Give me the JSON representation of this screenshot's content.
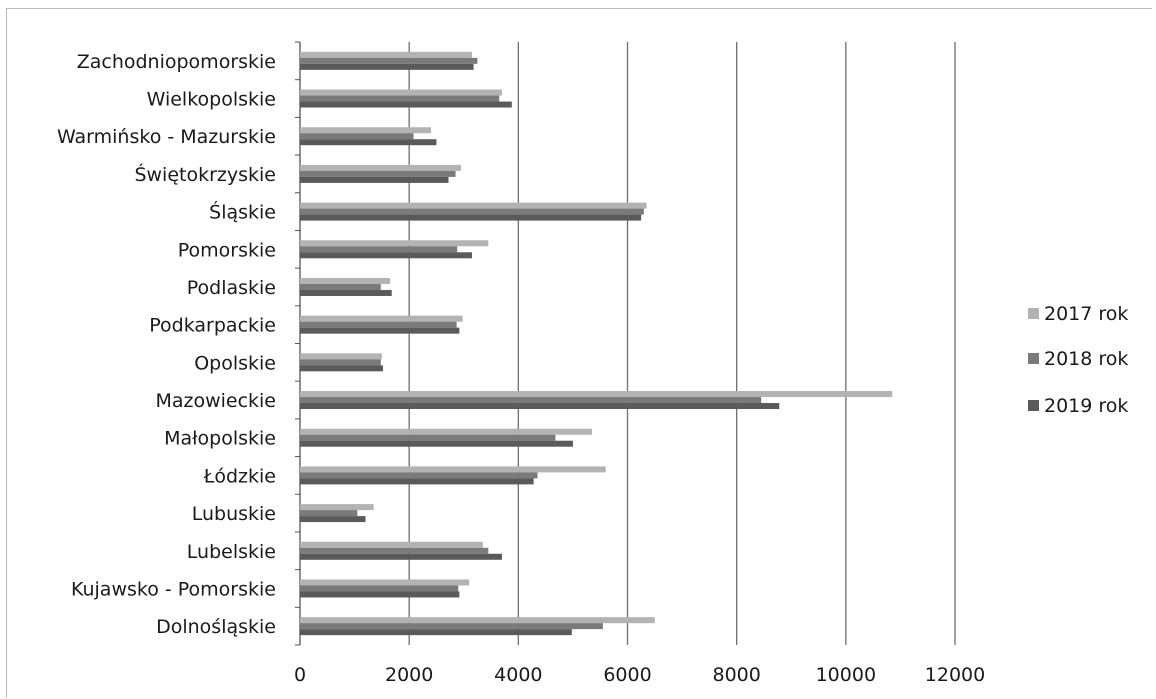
{
  "chart_data": {
    "type": "bar",
    "orientation": "horizontal",
    "title": "",
    "xlabel": "",
    "ylabel": "",
    "xlim": [
      0,
      12000
    ],
    "x_ticks": [
      0,
      2000,
      4000,
      6000,
      8000,
      10000,
      12000
    ],
    "x_tick_labels": [
      "0",
      "2000",
      "4000",
      "6000",
      "8000",
      "10000",
      "12000"
    ],
    "grid": "vertical",
    "legend_position": "right",
    "categories": [
      "Zachodniopomorskie",
      "Wielkopolskie",
      "Warmińsko - Mazurskie",
      "Świętokrzyskie",
      "Śląskie",
      "Pomorskie",
      "Podlaskie",
      "Podkarpackie",
      "Opolskie",
      "Mazowieckie",
      "Małopolskie",
      "Łódzkie",
      "Lubuskie",
      "Lubelskie",
      "Kujawsko - Pomorskie",
      "Dolnośląskie"
    ],
    "series": [
      {
        "name": "2017 rok",
        "color": "#b3b3b3",
        "values": [
          3150,
          3700,
          2400,
          2950,
          6350,
          3450,
          1650,
          2980,
          1500,
          10850,
          5350,
          5600,
          1350,
          3350,
          3100,
          6500
        ]
      },
      {
        "name": "2018 rok",
        "color": "#7a7a7a",
        "values": [
          3250,
          3650,
          2080,
          2850,
          6300,
          2880,
          1480,
          2870,
          1480,
          8450,
          4680,
          4350,
          1050,
          3450,
          2900,
          5550
        ]
      },
      {
        "name": "2019 rok",
        "color": "#5a5a5a",
        "values": [
          3180,
          3880,
          2500,
          2720,
          6250,
          3150,
          1680,
          2920,
          1520,
          8780,
          5000,
          4280,
          1200,
          3700,
          2920,
          4980
        ]
      }
    ]
  }
}
